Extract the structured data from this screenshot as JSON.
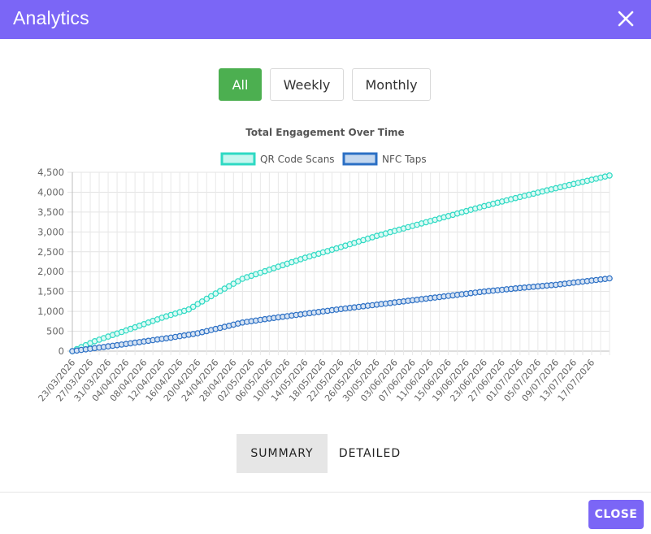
{
  "dialog": {
    "title": "Analytics",
    "close_icon": "close-icon"
  },
  "filters": [
    {
      "label": "All",
      "active": true
    },
    {
      "label": "Weekly",
      "active": false
    },
    {
      "label": "Monthly",
      "active": false
    }
  ],
  "tabs": [
    {
      "label": "SUMMARY",
      "active": true
    },
    {
      "label": "DETAILED",
      "active": false
    }
  ],
  "footer": {
    "close_label": "CLOSE"
  },
  "colors": {
    "accent": "#7b66f6",
    "active_filter": "#4caf50",
    "qr": "#2ed9c3",
    "nfc": "#2b6fc4"
  },
  "chart_data": {
    "type": "line",
    "title": "Total Engagement Over Time",
    "legend_position": "top",
    "grid": true,
    "ylim": [
      0,
      4500
    ],
    "yticks": [
      "0",
      "500",
      "1,000",
      "1,500",
      "2,000",
      "2,500",
      "3,000",
      "3,500",
      "4,000",
      "4,500"
    ],
    "x_start": "23/03/2026",
    "x_end": "21/07/2026",
    "xtick_labels": [
      "23/03/2026",
      "27/03/2026",
      "31/03/2026",
      "04/04/2026",
      "08/04/2026",
      "12/04/2026",
      "16/04/2026",
      "20/04/2026",
      "24/04/2026",
      "28/04/2026",
      "02/05/2026",
      "06/05/2026",
      "10/05/2026",
      "14/05/2026",
      "18/05/2026",
      "22/05/2026",
      "26/05/2026",
      "30/05/2026",
      "03/06/2026",
      "07/06/2026",
      "11/06/2026",
      "15/06/2026",
      "19/06/2026",
      "23/06/2026",
      "27/06/2026",
      "01/07/2026",
      "05/07/2026",
      "09/07/2026",
      "13/07/2026",
      "17/07/2026"
    ],
    "series": [
      {
        "name": "QR Code Scans",
        "color": "#2ed9c3",
        "points": [
          [
            "23/03/2026",
            0
          ],
          [
            "28/03/2026",
            250
          ],
          [
            "04/04/2026",
            520
          ],
          [
            "12/04/2026",
            840
          ],
          [
            "18/04/2026",
            1050
          ],
          [
            "24/04/2026",
            1450
          ],
          [
            "30/04/2026",
            1820
          ],
          [
            "06/05/2026",
            2050
          ],
          [
            "14/05/2026",
            2350
          ],
          [
            "22/05/2026",
            2620
          ],
          [
            "30/05/2026",
            2900
          ],
          [
            "07/06/2026",
            3150
          ],
          [
            "15/06/2026",
            3400
          ],
          [
            "23/06/2026",
            3650
          ],
          [
            "01/07/2026",
            3880
          ],
          [
            "09/07/2026",
            4100
          ],
          [
            "21/07/2026",
            4420
          ]
        ]
      },
      {
        "name": "NFC Taps",
        "color": "#2b6fc4",
        "points": [
          [
            "23/03/2026",
            0
          ],
          [
            "04/04/2026",
            180
          ],
          [
            "14/04/2026",
            340
          ],
          [
            "20/04/2026",
            450
          ],
          [
            "30/04/2026",
            720
          ],
          [
            "06/05/2026",
            820
          ],
          [
            "14/05/2026",
            940
          ],
          [
            "22/05/2026",
            1060
          ],
          [
            "30/05/2026",
            1170
          ],
          [
            "07/06/2026",
            1280
          ],
          [
            "15/06/2026",
            1390
          ],
          [
            "23/06/2026",
            1500
          ],
          [
            "01/07/2026",
            1590
          ],
          [
            "09/07/2026",
            1670
          ],
          [
            "21/07/2026",
            1830
          ]
        ]
      }
    ]
  }
}
